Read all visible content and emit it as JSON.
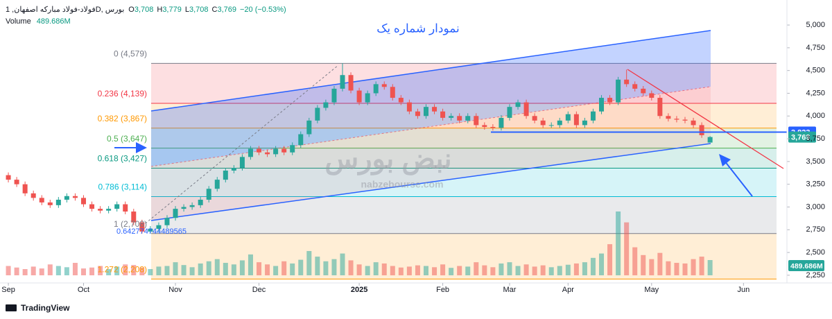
{
  "chart_data": {
    "type": "candlestick",
    "title": "نمودار شماره یک",
    "header": {
      "symbol": "فولاد-فولاد مبارکه اصفهان, 1D, بورس",
      "ohlc": [
        {
          "label": "O",
          "value": "3,708"
        },
        {
          "label": "H",
          "value": "3,779"
        },
        {
          "label": "L",
          "value": "3,708"
        },
        {
          "label": "C",
          "value": "3,769"
        }
      ],
      "change": "−20 (−0.53%)",
      "volume_label": "Volume",
      "volume_value": "489.686M"
    },
    "up_color": "#26a69a",
    "down_color": "#ef5350",
    "open": [
      3350,
      3300,
      3250,
      3150,
      3100,
      3050,
      3020,
      3080,
      3120,
      3100,
      3030,
      2980,
      2960,
      2980,
      3030,
      2950,
      2830,
      2730,
      2760,
      2800,
      2880,
      2980,
      3000,
      3020,
      3080,
      3200,
      3300,
      3400,
      3430,
      3550,
      3640,
      3600,
      3580,
      3640,
      3600,
      3680,
      3800,
      3950,
      4090,
      4150,
      4300,
      4450,
      4280,
      4150,
      4250,
      4350,
      4320,
      4200,
      4150,
      4050,
      4000,
      4100,
      4050,
      3980,
      4000,
      3950,
      4000,
      3900,
      3880,
      3870,
      3980,
      4100,
      4150,
      4000,
      3950,
      3900,
      3900,
      3950,
      4020,
      3900,
      3950,
      4050,
      4200,
      4150,
      4400,
      4350,
      4300,
      4250,
      4200,
      4000,
      3970,
      3960,
      3950,
      3900,
      3708
    ],
    "high": [
      3380,
      3330,
      3280,
      3180,
      3130,
      3080,
      3110,
      3150,
      3150,
      3130,
      3060,
      3010,
      3010,
      3060,
      3060,
      2980,
      2860,
      2790,
      2830,
      2910,
      3010,
      3030,
      3050,
      3110,
      3230,
      3330,
      3430,
      3460,
      3580,
      3670,
      3670,
      3630,
      3670,
      3670,
      3710,
      3830,
      3980,
      4120,
      4180,
      4330,
      4579,
      4480,
      4310,
      4280,
      4380,
      4380,
      4350,
      4230,
      4180,
      4080,
      4130,
      4130,
      4080,
      4030,
      4030,
      4030,
      4030,
      3930,
      3910,
      4010,
      4130,
      4180,
      4180,
      4030,
      3980,
      3930,
      3980,
      4050,
      4050,
      3980,
      4080,
      4230,
      4230,
      4430,
      4510,
      4380,
      4330,
      4280,
      4230,
      4030,
      4000,
      3990,
      3980,
      3930,
      3779
    ],
    "low": [
      3270,
      3220,
      3120,
      3070,
      3020,
      2990,
      2990,
      3050,
      3070,
      3000,
      2950,
      2930,
      2930,
      2950,
      2920,
      2800,
      2708,
      2708,
      2730,
      2770,
      2850,
      2950,
      2970,
      2990,
      3050,
      3170,
      3270,
      3370,
      3400,
      3520,
      3570,
      3550,
      3550,
      3570,
      3570,
      3650,
      3770,
      3920,
      4060,
      4120,
      4270,
      4250,
      4120,
      4120,
      4220,
      4290,
      4170,
      4120,
      4020,
      3970,
      3970,
      4020,
      3950,
      3950,
      3920,
      3920,
      3870,
      3850,
      3840,
      3840,
      3950,
      4070,
      3970,
      3920,
      3870,
      3870,
      3870,
      3920,
      3870,
      3870,
      3920,
      4020,
      4120,
      4120,
      4320,
      4270,
      4220,
      4170,
      3970,
      3940,
      3930,
      3920,
      3870,
      3760,
      3708
    ],
    "close": [
      3300,
      3250,
      3150,
      3100,
      3050,
      3020,
      3080,
      3120,
      3100,
      3030,
      2980,
      2960,
      2980,
      3030,
      2950,
      2830,
      2730,
      2760,
      2800,
      2880,
      2980,
      3000,
      3020,
      3080,
      3200,
      3300,
      3400,
      3430,
      3550,
      3640,
      3600,
      3580,
      3640,
      3600,
      3680,
      3800,
      3950,
      4090,
      4150,
      4300,
      4450,
      4280,
      4150,
      4250,
      4350,
      4320,
      4200,
      4150,
      4050,
      4000,
      4100,
      4050,
      3980,
      4000,
      3950,
      4000,
      3900,
      3880,
      3870,
      3980,
      4100,
      4150,
      4000,
      3950,
      3900,
      3900,
      3950,
      4020,
      3900,
      3950,
      4050,
      4200,
      4150,
      4400,
      4350,
      4300,
      4250,
      4200,
      4000,
      3970,
      3960,
      3950,
      3900,
      3789,
      3769
    ],
    "volume": [
      300,
      250,
      200,
      280,
      220,
      350,
      300,
      260,
      400,
      220,
      250,
      300,
      200,
      280,
      350,
      330,
      250,
      200,
      280,
      300,
      420,
      330,
      260,
      380,
      450,
      520,
      400,
      350,
      480,
      670,
      420,
      350,
      300,
      450,
      380,
      500,
      780,
      600,
      450,
      520,
      700,
      480,
      350,
      300,
      420,
      380,
      300,
      250,
      280,
      320,
      300,
      260,
      350,
      240,
      300,
      280,
      420,
      320,
      260,
      380,
      420,
      300,
      350,
      280,
      320,
      260,
      300,
      340,
      380,
      420,
      560,
      700,
      1000,
      2050,
      1700,
      900,
      650,
      520,
      720,
      450,
      400,
      380,
      520,
      600,
      489.686
    ],
    "xlim": [
      -1,
      93.2
    ],
    "xticks": [
      {
        "value": 0,
        "label": "Sep"
      },
      {
        "value": 9,
        "label": "Oct"
      },
      {
        "value": 20,
        "label": "Nov"
      },
      {
        "value": 30,
        "label": "Dec"
      },
      {
        "value": 42,
        "label": "2025"
      },
      {
        "value": 52,
        "label": "Feb"
      },
      {
        "value": 60,
        "label": "Mar"
      },
      {
        "value": 67,
        "label": "Apr"
      },
      {
        "value": 77,
        "label": "May"
      },
      {
        "value": 88,
        "label": "Jun"
      }
    ],
    "ylim": [
      2150,
      5275
    ],
    "yticks": [
      {
        "value": 5000,
        "label": "5,000"
      },
      {
        "value": 4750,
        "label": "4,750"
      },
      {
        "value": 4500,
        "label": "4,500"
      },
      {
        "value": 4250,
        "label": "4,250"
      },
      {
        "value": 4000,
        "label": "4,000"
      },
      {
        "value": 3750,
        "label": "3,750"
      },
      {
        "value": 3500,
        "label": "3,500"
      },
      {
        "value": 3250,
        "label": "3,250"
      },
      {
        "value": 3000,
        "label": "3,000"
      },
      {
        "value": 2750,
        "label": "2,750"
      },
      {
        "value": 2500,
        "label": "2,500"
      },
      {
        "value": 2250,
        "label": "2,250"
      }
    ],
    "volume_lim": [
      0,
      9130
    ],
    "fib_levels": [
      {
        "ratio": 0,
        "value": 4579,
        "label": "0 (4,579)",
        "color": "#787b86"
      },
      {
        "ratio": 0.236,
        "value": 4139,
        "label": "0.236 (4,139)",
        "color": "#f23645"
      },
      {
        "ratio": 0.382,
        "value": 3867,
        "label": "0.382 (3,867)",
        "color": "#ff9800"
      },
      {
        "ratio": 0.5,
        "value": 3647,
        "label": "0.5 (3,647)",
        "color": "#4caf50"
      },
      {
        "ratio": 0.618,
        "value": 3427,
        "label": "0.618 (3,427)",
        "color": "#089981"
      },
      {
        "ratio": 0.786,
        "value": 3114,
        "label": "0.786 (3,114)",
        "color": "#00bcd4"
      },
      {
        "ratio": 1,
        "value": 2708,
        "label": "1 (2,708)",
        "color": "#787b86"
      },
      {
        "ratio": 1.272,
        "value": 2208,
        "label": "1.272 (2,208)",
        "color": "#ff9800"
      }
    ],
    "price_labels": [
      {
        "value": 3823,
        "label": "3,823",
        "color": "#2962ff"
      },
      {
        "value": 3769,
        "label": "3,769",
        "color": "#26a69a"
      }
    ],
    "annotation": "0.642774744489565",
    "watermark": {
      "name": "نبض بورس",
      "site": "nabzebourse.com"
    },
    "footer": "TradingView"
  }
}
